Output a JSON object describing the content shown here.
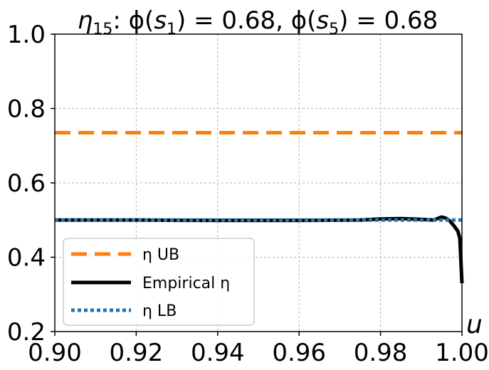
{
  "chart_data": {
    "type": "line",
    "title": "η₁₅: ϕ(s₁) = 0.68, ϕ(s₅) = 0.68",
    "title_parts": {
      "eta": "η",
      "eta_sub": "15",
      "phi1": ": ϕ(",
      "s1": "s",
      "s1_sub": "1",
      "val1": ") = 0.68, ϕ(",
      "s5": "s",
      "s5_sub": "5",
      "val5": ") = 0.68"
    },
    "xlabel": "u",
    "ylabel": "",
    "xlim": [
      0.9,
      1.0
    ],
    "ylim": [
      0.2,
      1.0
    ],
    "xticks": [
      "0.90",
      "0.92",
      "0.94",
      "0.96",
      "0.98",
      "1.00"
    ],
    "yticks": [
      "0.2",
      "0.4",
      "0.6",
      "0.8",
      "1.0"
    ],
    "grid": true,
    "legend_position": "lower-left",
    "series": [
      {
        "name": "η UB",
        "style": "dashed",
        "color": "#ff7f0e",
        "x": [
          0.9,
          1.0
        ],
        "y": [
          0.735,
          0.735
        ]
      },
      {
        "name": "Empirical η",
        "style": "solid",
        "color": "#000000",
        "x": [
          0.9,
          0.92,
          0.94,
          0.96,
          0.975,
          0.98,
          0.985,
          0.99,
          0.993,
          0.995,
          0.996,
          0.997,
          0.998,
          0.999,
          0.9995,
          1.0
        ],
        "y": [
          0.5,
          0.5,
          0.499,
          0.499,
          0.5,
          0.503,
          0.504,
          0.502,
          0.5,
          0.508,
          0.505,
          0.498,
          0.485,
          0.47,
          0.45,
          0.33
        ]
      },
      {
        "name": "η LB",
        "style": "dotted",
        "color": "#1f77b4",
        "x": [
          0.9,
          1.0
        ],
        "y": [
          0.5,
          0.5
        ]
      }
    ]
  }
}
